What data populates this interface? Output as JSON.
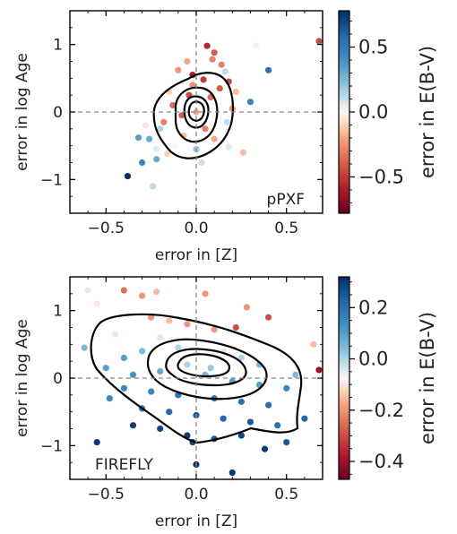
{
  "chart_data": [
    {
      "type": "scatter",
      "title": "",
      "annotation": "pPXF",
      "xlabel": "error in [Z]",
      "ylabel": "error in log Age",
      "xlim": [
        -0.7,
        0.7
      ],
      "ylim": [
        -1.5,
        1.5
      ],
      "xticks": [
        -0.5,
        0.0,
        0.5
      ],
      "yticks": [
        -1,
        0,
        1
      ],
      "xtick_labels": [
        "−0.5",
        "0.0",
        "0.5"
      ],
      "ytick_labels": [
        "−1",
        "0",
        "1"
      ],
      "reference_lines": {
        "x": 0,
        "y": 0
      },
      "colorbar": {
        "label": "error in E(B-V)",
        "range": [
          -0.78,
          0.78
        ],
        "ticks": [
          -0.5,
          0.0,
          0.5
        ],
        "tick_labels": [
          "−0.5",
          "0.0",
          "0.5"
        ],
        "colormap": "RdBu"
      },
      "points": [
        {
          "x": -0.38,
          "y": -0.95,
          "c": 0.78
        },
        {
          "x": -0.3,
          "y": -0.75,
          "c": 0.45
        },
        {
          "x": -0.22,
          "y": -0.7,
          "c": 0.3
        },
        {
          "x": -0.32,
          "y": -0.38,
          "c": 0.35
        },
        {
          "x": -0.26,
          "y": -0.4,
          "c": 0.3
        },
        {
          "x": -0.22,
          "y": -0.55,
          "c": 0.05
        },
        {
          "x": -0.24,
          "y": -1.1,
          "c": 0.12
        },
        {
          "x": 0.03,
          "y": -0.75,
          "c": 0.1
        },
        {
          "x": 0.3,
          "y": 0.15,
          "c": 0.45
        },
        {
          "x": 0.4,
          "y": 0.62,
          "c": 0.55
        },
        {
          "x": 0.33,
          "y": 0.98,
          "c": 0.02
        },
        {
          "x": 0.68,
          "y": 1.05,
          "c": -0.45
        },
        {
          "x": 0.06,
          "y": 0.98,
          "c": -0.55
        },
        {
          "x": 0.1,
          "y": 0.88,
          "c": -0.4
        },
        {
          "x": 0.09,
          "y": 0.78,
          "c": -0.3
        },
        {
          "x": -0.05,
          "y": 0.75,
          "c": -0.2
        },
        {
          "x": -0.1,
          "y": 0.62,
          "c": -0.25
        },
        {
          "x": 0.16,
          "y": 0.6,
          "c": 0.12
        },
        {
          "x": 0.26,
          "y": -0.6,
          "c": -0.15
        },
        {
          "x": 0.18,
          "y": -0.52,
          "c": 0.05
        },
        {
          "x": -0.18,
          "y": -0.15,
          "c": -0.3
        },
        {
          "x": -0.13,
          "y": 0.1,
          "c": -0.35
        },
        {
          "x": 0.13,
          "y": 0.35,
          "c": -0.4
        },
        {
          "x": 0.2,
          "y": 0.05,
          "c": -0.25
        },
        {
          "x": 0.04,
          "y": 0.48,
          "c": -0.5
        },
        {
          "x": -0.04,
          "y": 0.25,
          "c": -0.45
        },
        {
          "x": 0.0,
          "y": 0.0,
          "c": -0.2
        },
        {
          "x": 0.05,
          "y": -0.25,
          "c": -0.3
        },
        {
          "x": -0.07,
          "y": -0.35,
          "c": -0.15
        },
        {
          "x": 0.1,
          "y": -0.4,
          "c": -0.2
        },
        {
          "x": -0.12,
          "y": -0.5,
          "c": 0.0
        },
        {
          "x": 0.17,
          "y": -0.15,
          "c": 0.1
        },
        {
          "x": -0.02,
          "y": 0.55,
          "c": -0.6
        },
        {
          "x": 0.08,
          "y": 0.22,
          "c": -0.35
        },
        {
          "x": -0.15,
          "y": 0.3,
          "c": -0.1
        },
        {
          "x": -0.08,
          "y": -0.05,
          "c": -0.4
        },
        {
          "x": 0.12,
          "y": -0.05,
          "c": 0.0
        },
        {
          "x": -0.2,
          "y": -0.25,
          "c": 0.15
        },
        {
          "x": 0.22,
          "y": 0.3,
          "c": -0.15
        },
        {
          "x": 0.0,
          "y": -0.55,
          "c": 0.2
        },
        {
          "x": -0.16,
          "y": -0.62,
          "c": -0.1
        },
        {
          "x": 0.14,
          "y": 0.7,
          "c": -0.3
        },
        {
          "x": -0.02,
          "y": 0.4,
          "c": -0.25
        },
        {
          "x": 0.18,
          "y": 0.45,
          "c": -0.45
        },
        {
          "x": -0.28,
          "y": -0.2,
          "c": -0.05
        }
      ],
      "contour_levels": 4
    },
    {
      "type": "scatter",
      "title": "",
      "annotation": "FIREFLY",
      "xlabel": "error in [Z]",
      "ylabel": "error in log Age",
      "xlim": [
        -0.7,
        0.7
      ],
      "ylim": [
        -1.5,
        1.5
      ],
      "xticks": [
        -0.5,
        0.0,
        0.5
      ],
      "yticks": [
        -1,
        0,
        1
      ],
      "xtick_labels": [
        "−0.5",
        "0.0",
        "0.5"
      ],
      "ytick_labels": [
        "−1",
        "0",
        "1"
      ],
      "reference_lines": {
        "x": 0,
        "y": 0
      },
      "colorbar": {
        "label": "error in E(B-V)",
        "range": [
          -0.47,
          0.32
        ],
        "ticks": [
          -0.4,
          -0.2,
          0.0,
          0.2
        ],
        "tick_labels": [
          "−0.4",
          "−0.2",
          "0.0",
          "0.2"
        ],
        "colormap": "RdBu"
      },
      "points": [
        {
          "x": -0.4,
          "y": 1.3,
          "c": -0.25
        },
        {
          "x": -0.3,
          "y": 1.22,
          "c": -0.2
        },
        {
          "x": -0.22,
          "y": 1.28,
          "c": -0.15
        },
        {
          "x": 0.05,
          "y": 1.25,
          "c": -0.2
        },
        {
          "x": 0.22,
          "y": 0.75,
          "c": -0.3
        },
        {
          "x": 0.4,
          "y": 0.9,
          "c": -0.3
        },
        {
          "x": 0.28,
          "y": 1.05,
          "c": -0.2
        },
        {
          "x": 0.65,
          "y": 0.5,
          "c": -0.15
        },
        {
          "x": 0.68,
          "y": 0.12,
          "c": -0.4
        },
        {
          "x": -0.55,
          "y": 1.1,
          "c": -0.1
        },
        {
          "x": -0.62,
          "y": 0.45,
          "c": 0.05
        },
        {
          "x": -0.4,
          "y": 0.3,
          "c": 0.1
        },
        {
          "x": -0.6,
          "y": 1.3,
          "c": -0.05
        },
        {
          "x": -0.25,
          "y": 0.9,
          "c": -0.2
        },
        {
          "x": -0.15,
          "y": 0.85,
          "c": -0.15
        },
        {
          "x": -0.05,
          "y": 0.8,
          "c": -0.2
        },
        {
          "x": 0.1,
          "y": 0.72,
          "c": -0.2
        },
        {
          "x": -0.2,
          "y": 0.6,
          "c": -0.05
        },
        {
          "x": -0.1,
          "y": 0.45,
          "c": 0.0
        },
        {
          "x": 0.0,
          "y": 0.35,
          "c": -0.05
        },
        {
          "x": 0.15,
          "y": 0.4,
          "c": -0.1
        },
        {
          "x": 0.25,
          "y": 0.3,
          "c": 0.0
        },
        {
          "x": 0.35,
          "y": 0.2,
          "c": 0.05
        },
        {
          "x": -0.3,
          "y": 0.4,
          "c": 0.05
        },
        {
          "x": -0.45,
          "y": 0.65,
          "c": -0.05
        },
        {
          "x": -0.5,
          "y": 0.15,
          "c": 0.1
        },
        {
          "x": -0.35,
          "y": 0.05,
          "c": 0.12
        },
        {
          "x": -0.2,
          "y": 0.1,
          "c": 0.08
        },
        {
          "x": 0.05,
          "y": 0.05,
          "c": 0.05
        },
        {
          "x": 0.2,
          "y": -0.05,
          "c": 0.1
        },
        {
          "x": 0.35,
          "y": -0.1,
          "c": 0.1
        },
        {
          "x": 0.5,
          "y": -0.15,
          "c": 0.15
        },
        {
          "x": 0.55,
          "y": 0.05,
          "c": 0.05
        },
        {
          "x": -0.4,
          "y": -0.15,
          "c": 0.15
        },
        {
          "x": -0.25,
          "y": -0.2,
          "c": 0.15
        },
        {
          "x": -0.1,
          "y": -0.25,
          "c": 0.2
        },
        {
          "x": 0.1,
          "y": -0.3,
          "c": 0.18
        },
        {
          "x": 0.25,
          "y": -0.35,
          "c": 0.2
        },
        {
          "x": 0.4,
          "y": -0.4,
          "c": 0.2
        },
        {
          "x": -0.3,
          "y": -0.45,
          "c": 0.2
        },
        {
          "x": -0.15,
          "y": -0.5,
          "c": 0.22
        },
        {
          "x": 0.0,
          "y": -0.55,
          "c": 0.25
        },
        {
          "x": 0.15,
          "y": -0.6,
          "c": 0.22
        },
        {
          "x": 0.3,
          "y": -0.65,
          "c": 0.25
        },
        {
          "x": 0.45,
          "y": -0.7,
          "c": 0.2
        },
        {
          "x": -0.2,
          "y": -0.75,
          "c": 0.28
        },
        {
          "x": -0.05,
          "y": -0.85,
          "c": 0.3
        },
        {
          "x": 0.1,
          "y": -0.9,
          "c": 0.25
        },
        {
          "x": 0.25,
          "y": -0.85,
          "c": 0.28
        },
        {
          "x": -0.35,
          "y": -0.7,
          "c": 0.3
        },
        {
          "x": -0.48,
          "y": -0.3,
          "c": 0.15
        },
        {
          "x": 0.6,
          "y": -0.6,
          "c": 0.22
        },
        {
          "x": 0.38,
          "y": -1.05,
          "c": 0.3
        },
        {
          "x": 0.2,
          "y": -1.4,
          "c": 0.3
        },
        {
          "x": 0.0,
          "y": -1.28,
          "c": 0.32
        },
        {
          "x": -0.55,
          "y": -0.95,
          "c": 0.3
        },
        {
          "x": 0.5,
          "y": -0.95,
          "c": 0.25
        },
        {
          "x": -0.02,
          "y": -0.95,
          "c": 0.28
        },
        {
          "x": 0.08,
          "y": 0.15,
          "c": 0.02
        },
        {
          "x": -0.05,
          "y": 0.2,
          "c": 0.0
        }
      ],
      "contour_levels": 4
    }
  ]
}
